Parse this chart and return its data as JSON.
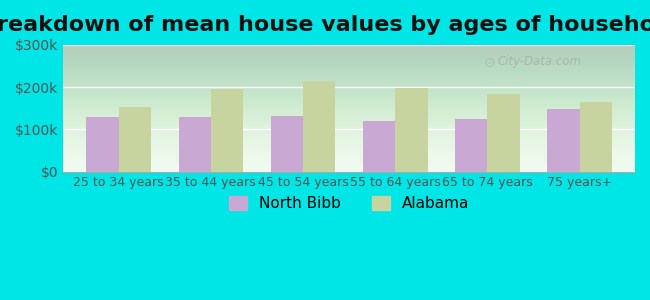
{
  "title": "Breakdown of mean house values by ages of householders",
  "categories": [
    "25 to 34 years",
    "35 to 44 years",
    "45 to 54 years",
    "55 to 64 years",
    "65 to 74 years",
    "75 years+"
  ],
  "north_bibb": [
    130000,
    130000,
    132000,
    120000,
    125000,
    148000
  ],
  "alabama": [
    152000,
    195000,
    215000,
    197000,
    183000,
    165000
  ],
  "north_bibb_color": "#c9a8d4",
  "alabama_color": "#c8d4a0",
  "ylim": [
    0,
    300000
  ],
  "yticks": [
    0,
    100000,
    200000,
    300000
  ],
  "ytick_labels": [
    "$0",
    "$100k",
    "$200k",
    "$300k"
  ],
  "outer_background": "#00e5e5",
  "legend_labels": [
    "North Bibb",
    "Alabama"
  ],
  "watermark": "City-Data.com",
  "title_fontsize": 16,
  "axis_label_fontsize": 10,
  "legend_fontsize": 11
}
